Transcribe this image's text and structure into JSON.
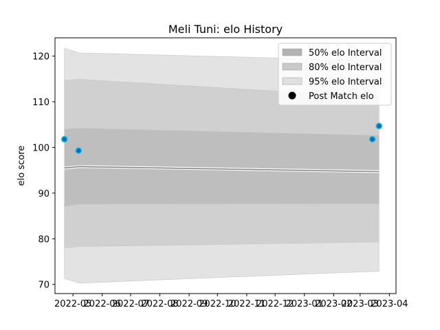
{
  "chart_data": {
    "type": "area",
    "title": "Meli Tuni: elo History",
    "xlabel": "",
    "ylabel": "elo score",
    "x_ticks": [
      "2022-05",
      "2022-06",
      "2022-07",
      "2022-08",
      "2022-09",
      "2022-10",
      "2022-11",
      "2022-12",
      "2023-01",
      "2023-02",
      "2023-03",
      "2023-04"
    ],
    "y_ticks": [
      70,
      80,
      90,
      100,
      110,
      120
    ],
    "xlim": [
      "2022-04-12",
      "2023-04-08"
    ],
    "ylim": [
      68,
      124
    ],
    "grid": false,
    "legend_position": "top-right",
    "band_x": [
      "2022-04-22",
      "2022-05-08",
      "2023-03-21"
    ],
    "bands": [
      {
        "name": "95% elo Interval",
        "color": "#e3e3e3",
        "lower": [
          71.3,
          70.3,
          72.9
        ],
        "upper": [
          121.7,
          120.7,
          119.0
        ]
      },
      {
        "name": "80% elo Interval",
        "color": "#d0d0d0",
        "lower": [
          78.0,
          78.3,
          79.3
        ],
        "upper": [
          114.7,
          114.9,
          111.0
        ]
      },
      {
        "name": "50% elo Interval",
        "color": "#bebebe",
        "lower": [
          87.1,
          87.6,
          87.7
        ],
        "upper": [
          104.0,
          104.2,
          102.6
        ]
      }
    ],
    "mean_line": {
      "color": "#888888",
      "values": [
        95.5,
        95.8,
        94.7
      ]
    },
    "points": {
      "name": "Post Match elo",
      "fill": "#1f63b0",
      "edge": "#00c8e8",
      "x": [
        "2022-04-22",
        "2022-05-07",
        "2023-03-14",
        "2023-03-21"
      ],
      "y": [
        101.8,
        99.3,
        101.8,
        104.7
      ]
    },
    "legend": [
      {
        "label": "50% elo Interval",
        "kind": "patch",
        "color": "#b3b3b3"
      },
      {
        "label": "80% elo Interval",
        "kind": "patch",
        "color": "#c9c9c9"
      },
      {
        "label": "95% elo Interval",
        "kind": "patch",
        "color": "#e0e0e0"
      },
      {
        "label": "Post Match elo",
        "kind": "marker",
        "color": "#000000"
      }
    ]
  }
}
